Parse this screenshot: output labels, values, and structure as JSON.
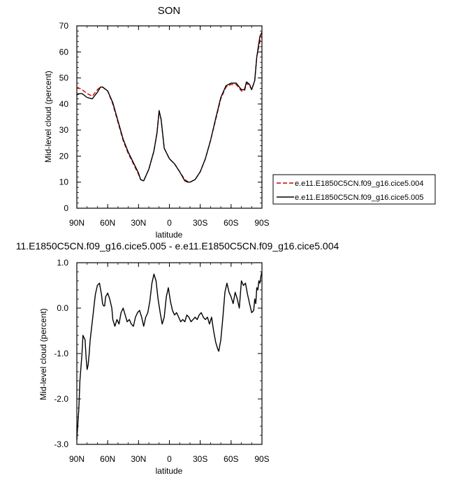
{
  "chart_data": [
    {
      "type": "line",
      "title": "SON",
      "xlabel": "latitude",
      "ylabel": "Mid-level cloud (percent)",
      "xticks": [
        "90N",
        "60N",
        "30N",
        "0",
        "30S",
        "60S",
        "90S"
      ],
      "yticks": [
        "0",
        "10",
        "20",
        "30",
        "40",
        "50",
        "60",
        "70"
      ],
      "xlim": [
        90,
        -90
      ],
      "ylim": [
        0,
        70
      ],
      "legend_position": "right",
      "series": [
        {
          "name": "e.e11.E1850C5CN.f09_g16.cice5.004",
          "color": "#cc0000",
          "style": "dashed",
          "x": [
            90,
            85,
            80,
            75,
            70,
            67,
            65,
            60,
            55,
            50,
            45,
            40,
            35,
            30,
            28,
            25,
            20,
            15,
            12,
            10,
            8,
            5,
            0,
            -5,
            -10,
            -15,
            -18,
            -20,
            -25,
            -30,
            -35,
            -40,
            -45,
            -50,
            -55,
            -60,
            -65,
            -70,
            -73,
            -75,
            -78,
            -80,
            -83,
            -85,
            -88,
            -90
          ],
          "y": [
            46.5,
            45.5,
            44,
            43,
            45.5,
            46.5,
            46.5,
            45,
            40,
            33,
            26,
            21,
            17,
            13,
            11,
            10.5,
            15,
            22,
            29,
            37,
            34,
            23,
            19,
            17,
            14,
            11,
            10.2,
            10,
            11,
            14,
            19,
            26,
            34,
            42,
            46.5,
            47.5,
            47.5,
            45,
            45,
            48,
            47,
            45.5,
            49,
            58,
            64,
            66.5
          ]
        },
        {
          "name": "e.e11.E1850C5CN.f09_g16.cice5.005",
          "color": "#000000",
          "style": "solid",
          "x": [
            90,
            87,
            85,
            80,
            75,
            70,
            67,
            65,
            60,
            55,
            50,
            45,
            40,
            35,
            30,
            28,
            25,
            20,
            15,
            12,
            10,
            8,
            5,
            0,
            -5,
            -10,
            -15,
            -18,
            -20,
            -25,
            -30,
            -35,
            -40,
            -45,
            -50,
            -55,
            -60,
            -65,
            -70,
            -73,
            -75,
            -78,
            -80,
            -83,
            -85,
            -88,
            -90
          ],
          "y": [
            43.5,
            44,
            44,
            42.5,
            42,
            44.5,
            46.5,
            46.5,
            45,
            40.5,
            33.5,
            26.5,
            21.5,
            17.5,
            13.5,
            11,
            10.5,
            15,
            22,
            29,
            37.5,
            34,
            23,
            19,
            17,
            14,
            10.5,
            10,
            10,
            11,
            14,
            19,
            26,
            34.5,
            42.5,
            47,
            48,
            48,
            45.5,
            45.5,
            48.5,
            47.5,
            45.5,
            49,
            58,
            66,
            67.5
          ]
        }
      ]
    },
    {
      "type": "line",
      "title": "11.E1850C5CN.f09_g16.cice5.005 - e.e11.E1850C5CN.f09_g16.cice5.004",
      "xlabel": "latitude",
      "ylabel": "Mid-level cloud (percent)",
      "xticks": [
        "90N",
        "60N",
        "30N",
        "0",
        "30S",
        "60S",
        "90S"
      ],
      "yticks": [
        "-3.0",
        "-2.0",
        "-1.0",
        "0.0",
        "1.0"
      ],
      "xlim": [
        90,
        -90
      ],
      "ylim": [
        -3,
        1
      ],
      "series": [
        {
          "color": "#000000",
          "style": "solid",
          "x": [
            90,
            88,
            87,
            85,
            84,
            82,
            81,
            80,
            79,
            78,
            77,
            75,
            73,
            72,
            70,
            68,
            66,
            65,
            64,
            63,
            62,
            60,
            58,
            56,
            55,
            53,
            51,
            49,
            47,
            45,
            43,
            41,
            39,
            37,
            35,
            33,
            31,
            29,
            27,
            25,
            23,
            21,
            19,
            17,
            15,
            13,
            11,
            9,
            7,
            5,
            3,
            1,
            -1,
            -3,
            -5,
            -7,
            -9,
            -11,
            -13,
            -15,
            -17,
            -19,
            -21,
            -23,
            -25,
            -27,
            -29,
            -31,
            -33,
            -35,
            -37,
            -39,
            -41,
            -43,
            -45,
            -47,
            -48,
            -50,
            -52,
            -54,
            -56,
            -58,
            -60,
            -62,
            -64,
            -66,
            -68,
            -70,
            -72,
            -74,
            -76,
            -78,
            -80,
            -82,
            -83,
            -84,
            -85,
            -86,
            -87,
            -88,
            -89,
            -90
          ],
          "y": [
            -2.9,
            -2.2,
            -1.6,
            -1.0,
            -0.6,
            -0.7,
            -1.1,
            -1.35,
            -1.25,
            -1.0,
            -0.7,
            -0.3,
            0.1,
            0.3,
            0.5,
            0.55,
            0.3,
            0.1,
            0.05,
            0.05,
            0.25,
            0.33,
            0.2,
            0.0,
            -0.25,
            -0.4,
            -0.25,
            -0.35,
            -0.1,
            0.0,
            -0.15,
            -0.3,
            -0.25,
            -0.35,
            -0.4,
            -0.2,
            -0.1,
            -0.05,
            -0.2,
            -0.4,
            -0.2,
            -0.1,
            0.15,
            0.55,
            0.75,
            0.6,
            0.2,
            -0.1,
            -0.35,
            -0.2,
            0.25,
            0.45,
            0.15,
            -0.05,
            -0.15,
            -0.1,
            -0.2,
            -0.3,
            -0.25,
            -0.3,
            -0.15,
            -0.2,
            -0.3,
            -0.25,
            -0.2,
            -0.25,
            -0.15,
            -0.1,
            -0.2,
            -0.25,
            -0.2,
            -0.35,
            -0.2,
            -0.5,
            -0.75,
            -0.9,
            -0.95,
            -0.7,
            -0.2,
            0.35,
            0.55,
            0.35,
            0.25,
            0.1,
            0.35,
            0.2,
            0.0,
            0.6,
            0.5,
            0.55,
            0.3,
            0.1,
            -0.1,
            -0.05,
            0.2,
            0.1,
            0.45,
            0.4,
            0.6,
            0.55,
            0.7,
            0.8
          ]
        }
      ]
    }
  ]
}
